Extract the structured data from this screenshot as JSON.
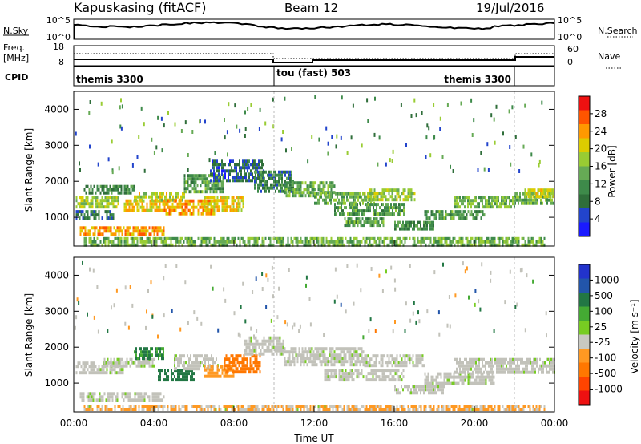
{
  "header": {
    "station": "Kapuskasing (fitACF)",
    "beam": "Beam 12",
    "date": "19/Jul/2016"
  },
  "summary": {
    "nsky_label": "N.Sky",
    "nsky_ticks": [
      "10^5",
      "10^0"
    ],
    "nsearch_label": "N.Search",
    "nsearch_ticks": [
      "10^5",
      "10^0"
    ],
    "freq_label": "Freq.",
    "freq_unit": "[MHz]",
    "freq_ticks": [
      "18",
      "8"
    ],
    "nave_label": "Nave",
    "nave_ticks": [
      "60",
      "0"
    ],
    "cpid_label": "CPID",
    "cpid_segments": [
      {
        "label": "themis 3300",
        "start": 0,
        "end": 10
      },
      {
        "label": "tou (fast) 503",
        "start": 10,
        "end": 22
      },
      {
        "label": "themis 3300",
        "start": 22,
        "end": 24
      }
    ]
  },
  "colors": {
    "power": [
      "#1a1aff",
      "#2244cc",
      "#2f6e3a",
      "#3e8a4a",
      "#66aa55",
      "#99cc33",
      "#ddcc00",
      "#ff9900",
      "#ff5500",
      "#ee1111"
    ],
    "velocity": [
      "#2233cc",
      "#2255aa",
      "#227744",
      "#44aa33",
      "#77cc22",
      "#c8c8c0",
      "#ff9922",
      "#ff7700",
      "#ff4400",
      "#ee1111"
    ],
    "ground": "#c2c2ba"
  },
  "chart_data": [
    {
      "type": "heatmap",
      "name": "power",
      "ylabel": "Slant Range [km]",
      "yticks": [
        "1000",
        "2000",
        "3000",
        "4000"
      ],
      "ylim": [
        200,
        4500
      ],
      "xlim": [
        0,
        24
      ],
      "colorbar_label": "Power [dB]",
      "colorbar_ticks": [
        "4",
        "8",
        "12",
        "16",
        "20",
        "24",
        "28"
      ],
      "clim": [
        0,
        30
      ],
      "bands": [
        {
          "t0": 0.1,
          "t1": 2.0,
          "r0": 1000,
          "r1": 1200,
          "v": 8
        },
        {
          "t0": 0.1,
          "t1": 2.2,
          "r0": 1300,
          "r1": 1600,
          "v": 16
        },
        {
          "t0": 0.5,
          "t1": 3.0,
          "r0": 1700,
          "r1": 1900,
          "v": 10
        },
        {
          "t0": 0.3,
          "t1": 4.5,
          "r0": 550,
          "r1": 750,
          "v": 22
        },
        {
          "t0": 2.5,
          "t1": 4.8,
          "r0": 1200,
          "r1": 1500,
          "v": 20
        },
        {
          "t0": 3.0,
          "t1": 5.5,
          "r0": 1500,
          "r1": 1700,
          "v": 18
        },
        {
          "t0": 4.5,
          "t1": 7.0,
          "r0": 1100,
          "r1": 1500,
          "v": 22
        },
        {
          "t0": 6.5,
          "t1": 8.5,
          "r0": 1200,
          "r1": 1600,
          "v": 20
        },
        {
          "t0": 5.5,
          "t1": 7.5,
          "r0": 1700,
          "r1": 2200,
          "v": 12
        },
        {
          "t0": 6.8,
          "t1": 9.5,
          "r0": 2000,
          "r1": 2600,
          "v": 6
        },
        {
          "t0": 9.0,
          "t1": 11.0,
          "r0": 1700,
          "r1": 2300,
          "v": 9
        },
        {
          "t0": 10.5,
          "t1": 13.0,
          "r0": 1600,
          "r1": 2000,
          "v": 13
        },
        {
          "t0": 12.0,
          "t1": 15.0,
          "r0": 1400,
          "r1": 1700,
          "v": 14
        },
        {
          "t0": 13.0,
          "t1": 16.5,
          "r0": 1100,
          "r1": 1400,
          "v": 12
        },
        {
          "t0": 14.5,
          "t1": 17.0,
          "r0": 1500,
          "r1": 1800,
          "v": 16
        },
        {
          "t0": 13.5,
          "t1": 15.5,
          "r0": 800,
          "r1": 1000,
          "v": 12
        },
        {
          "t0": 16.0,
          "t1": 18.0,
          "r0": 700,
          "r1": 900,
          "v": 10
        },
        {
          "t0": 17.5,
          "t1": 20.5,
          "r0": 1000,
          "r1": 1200,
          "v": 12
        },
        {
          "t0": 19.0,
          "t1": 22.0,
          "r0": 1300,
          "r1": 1600,
          "v": 14
        },
        {
          "t0": 22.0,
          "t1": 24.0,
          "r0": 1400,
          "r1": 1700,
          "v": 14
        },
        {
          "t0": 22.5,
          "t1": 24.0,
          "r0": 1600,
          "r1": 1800,
          "v": 18
        },
        {
          "t0": 0.5,
          "t1": 23.5,
          "r0": 250,
          "r1": 450,
          "v": 14
        }
      ]
    },
    {
      "type": "heatmap",
      "name": "velocity",
      "xlabel": "Time UT",
      "ylabel": "Slant Range [km]",
      "yticks": [
        "1000",
        "2000",
        "3000",
        "4000"
      ],
      "ylim": [
        200,
        4500
      ],
      "xticks": [
        "00:00",
        "04:00",
        "08:00",
        "12:00",
        "16:00",
        "20:00",
        "00:00"
      ],
      "xlim": [
        0,
        24
      ],
      "colorbar_label": "Velocity [m s⁻¹]",
      "colorbar_ticks": [
        "1000",
        "500",
        "100",
        "25",
        "-25",
        "-100",
        "-500",
        "-1000"
      ],
      "clim": [
        -1000,
        1000
      ],
      "bands": [
        {
          "t0": 0.1,
          "t1": 2.5,
          "r0": 1300,
          "r1": 1600,
          "v": 0,
          "g": 1
        },
        {
          "t0": 0.3,
          "t1": 4.5,
          "r0": 550,
          "r1": 750,
          "v": 0,
          "g": 1
        },
        {
          "t0": 1.5,
          "t1": 4.0,
          "r0": 1500,
          "r1": 1700,
          "v": 0,
          "g": 1
        },
        {
          "t0": 3.0,
          "t1": 4.5,
          "r0": 1700,
          "r1": 2000,
          "v": 150
        },
        {
          "t0": 4.2,
          "t1": 6.0,
          "r0": 1100,
          "r1": 1400,
          "v": 400
        },
        {
          "t0": 5.0,
          "t1": 7.2,
          "r0": 1400,
          "r1": 1800,
          "v": 0,
          "g": 1
        },
        {
          "t0": 6.5,
          "t1": 8.0,
          "r0": 1150,
          "r1": 1500,
          "v": -300
        },
        {
          "t0": 7.5,
          "t1": 9.3,
          "r0": 1300,
          "r1": 1800,
          "v": -600
        },
        {
          "t0": 8.5,
          "t1": 10.5,
          "r0": 1800,
          "r1": 2300,
          "v": 0,
          "g": 1
        },
        {
          "t0": 10.5,
          "t1": 14.5,
          "r0": 1500,
          "r1": 2000,
          "v": 0,
          "g": 1
        },
        {
          "t0": 12.5,
          "t1": 16.5,
          "r0": 1100,
          "r1": 1400,
          "v": 0,
          "g": 1
        },
        {
          "t0": 14.5,
          "t1": 17.5,
          "r0": 1500,
          "r1": 1800,
          "v": 0,
          "g": 1
        },
        {
          "t0": 16.0,
          "t1": 18.5,
          "r0": 700,
          "r1": 950,
          "v": 0,
          "g": 1
        },
        {
          "t0": 17.5,
          "t1": 21.0,
          "r0": 1000,
          "r1": 1300,
          "v": 0,
          "g": 1
        },
        {
          "t0": 19.0,
          "t1": 24.0,
          "r0": 1300,
          "r1": 1700,
          "v": 0,
          "g": 1
        },
        {
          "t0": 0.5,
          "t1": 23.5,
          "r0": 250,
          "r1": 400,
          "v": -120
        }
      ]
    }
  ]
}
